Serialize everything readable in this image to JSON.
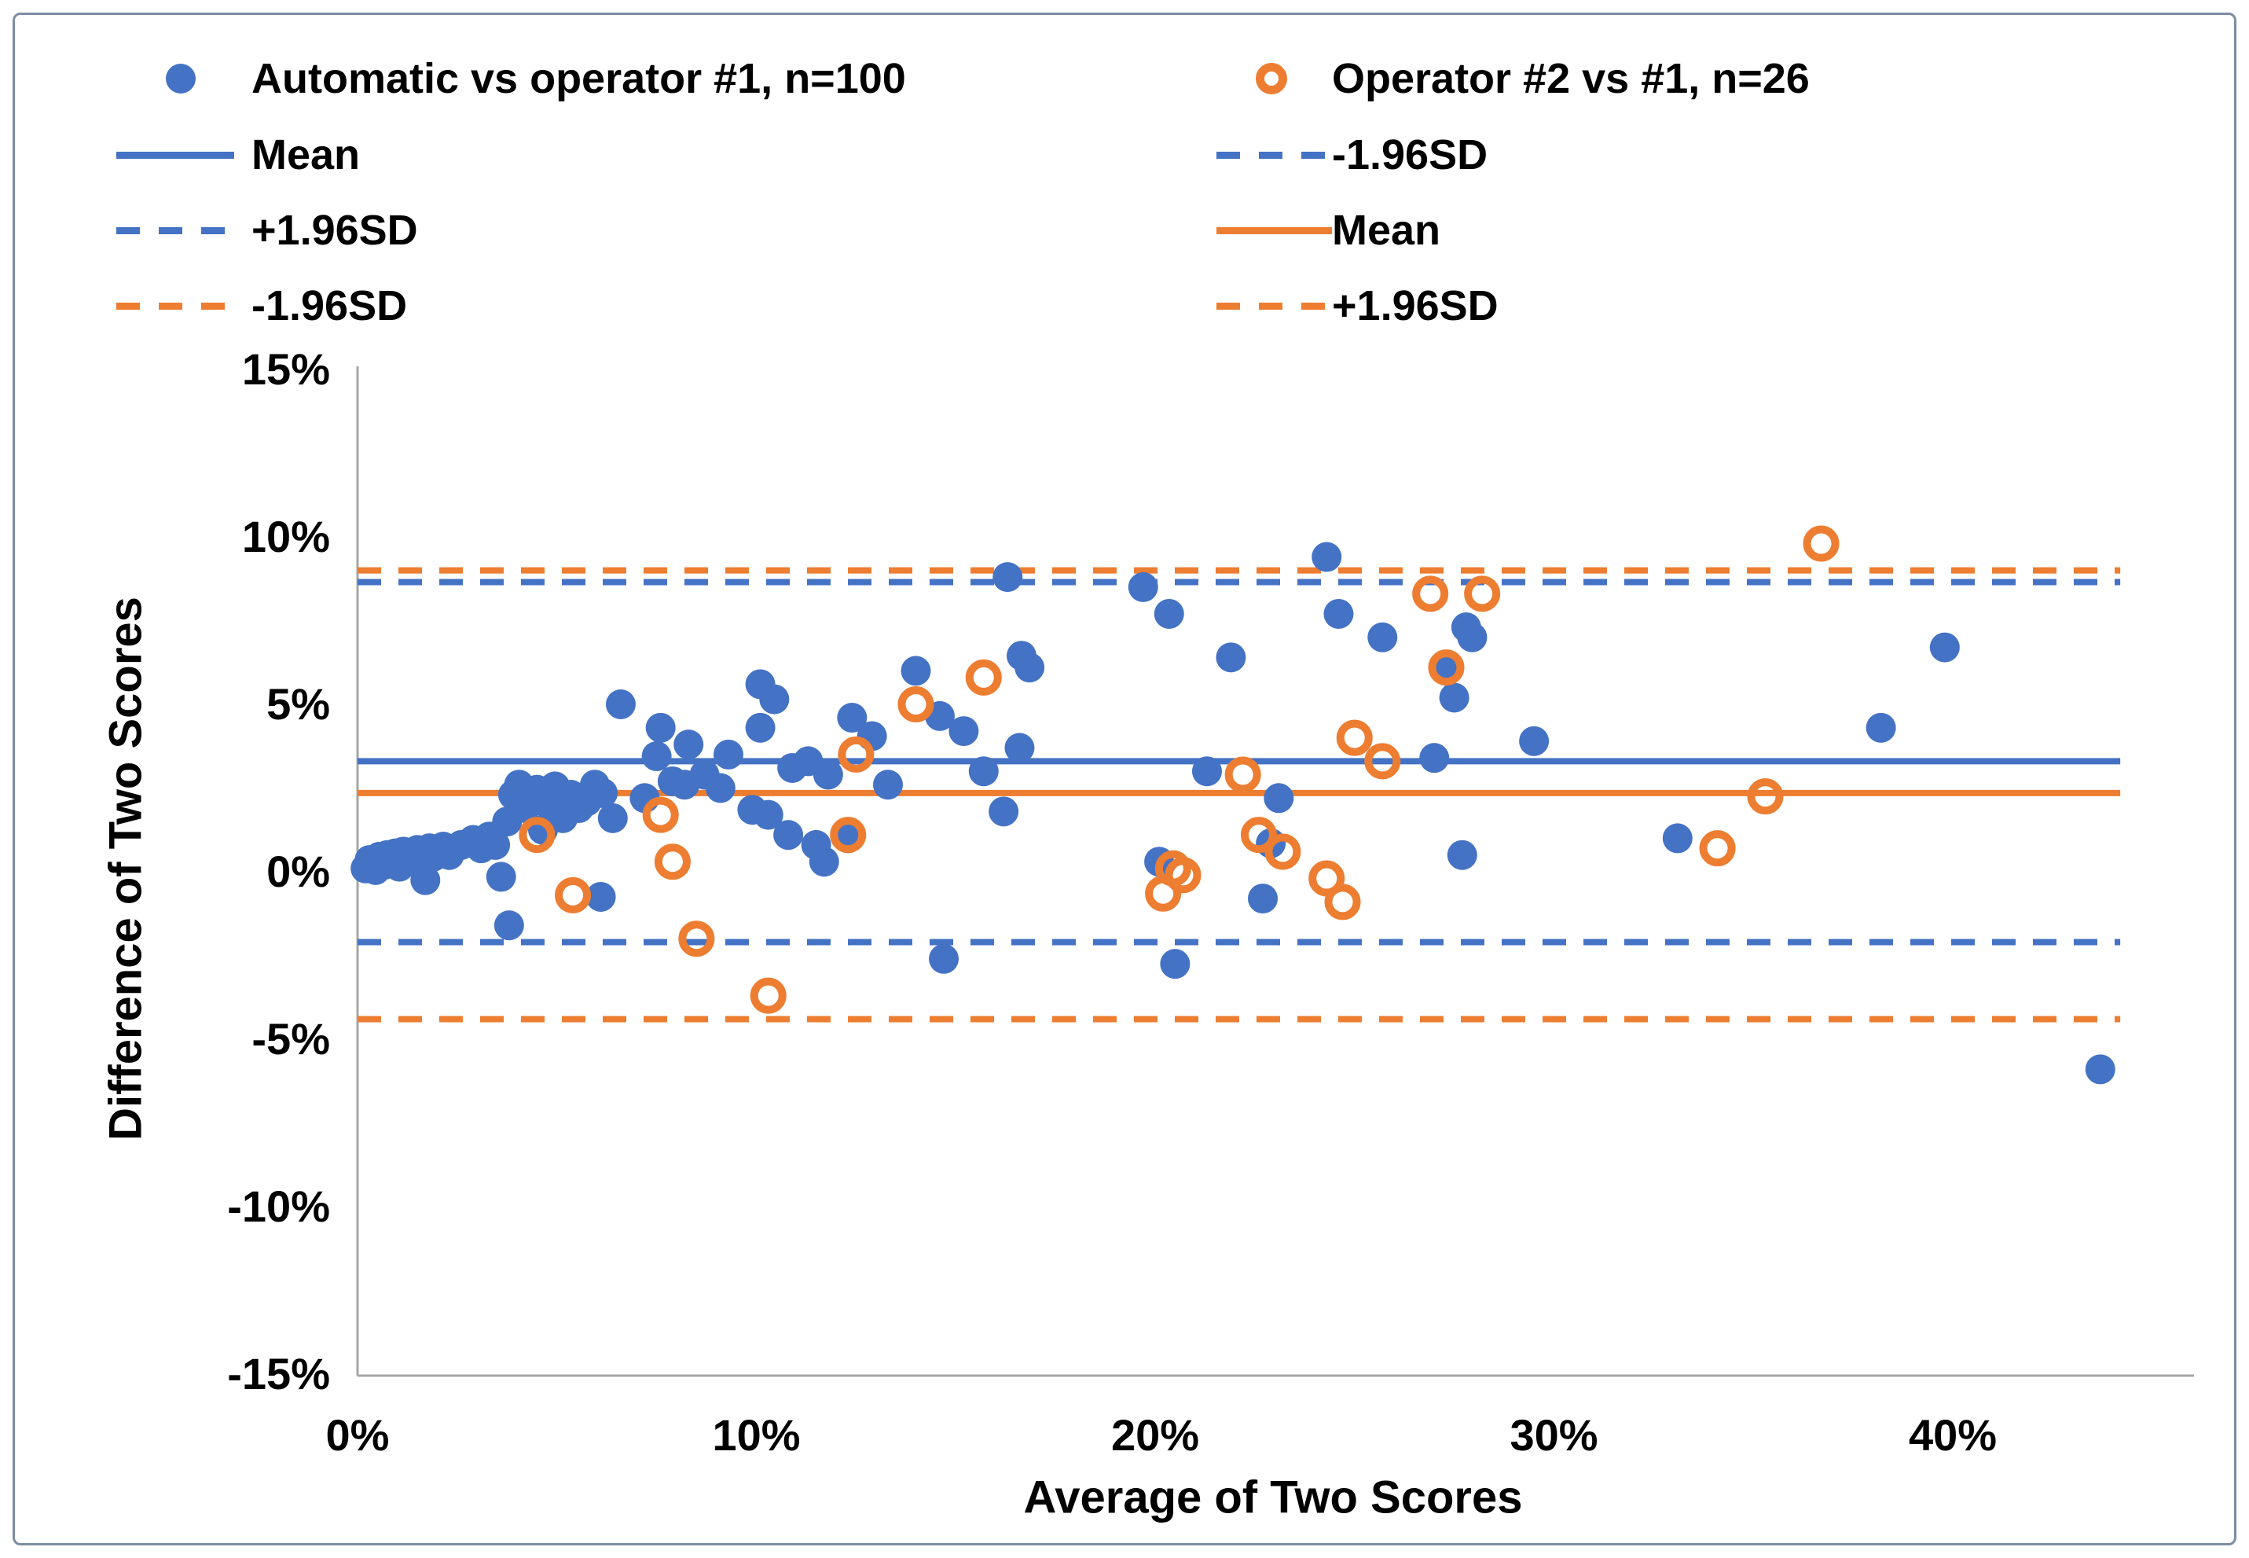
{
  "colors": {
    "series_blue": "#4472C4",
    "series_orange": "#ED7D31",
    "axis_line": "#A6A6A6",
    "text": "#000000",
    "frame_border": "#7d8ca3"
  },
  "legend": {
    "items": [
      {
        "label": "Automatic vs operator #1, n=100",
        "marker": "dot-blue"
      },
      {
        "label": "Mean",
        "marker": "line-solid-blue"
      },
      {
        "label": "+1.96SD",
        "marker": "line-dashed-blue"
      },
      {
        "label": "-1.96SD",
        "marker": "line-dashed-orange"
      },
      {
        "label": "Operator #2 vs #1, n=26",
        "marker": "ring-orange"
      },
      {
        "label": "-1.96SD",
        "marker": "line-dashed-blue"
      },
      {
        "label": "Mean",
        "marker": "line-solid-orange"
      },
      {
        "label": "+1.96SD",
        "marker": "line-dashed-orange"
      }
    ]
  },
  "chart_data": {
    "type": "scatter",
    "title": "",
    "xlabel": "Average of Two Scores",
    "ylabel": "Difference of Two Scores",
    "xlim": [
      0,
      46
    ],
    "ylim": [
      -15,
      15
    ],
    "x_tick_values": [
      0,
      10,
      20,
      30,
      40
    ],
    "x_tick_labels": [
      "0%",
      "10%",
      "20%",
      "30%",
      "40%"
    ],
    "y_tick_values": [
      15,
      10,
      5,
      0,
      -5,
      -10,
      -15
    ],
    "y_tick_labels": [
      "15%",
      "10%",
      "5%",
      "0%",
      "-5%",
      "-10%",
      "-15%"
    ],
    "grid": false,
    "legend_position": "top",
    "line_x_extent": [
      0,
      44.2
    ],
    "reference_lines": [
      {
        "name": "auto-mean",
        "label": "Mean",
        "series": "Automatic vs operator #1",
        "value": 3.3,
        "style": "solid",
        "color": "#4472C4"
      },
      {
        "name": "auto-upper",
        "label": "+1.96SD",
        "series": "Automatic vs operator #1",
        "value": 8.65,
        "style": "dashed",
        "color": "#4472C4"
      },
      {
        "name": "auto-lower",
        "label": "-1.96SD",
        "series": "Automatic vs operator #1",
        "value": -2.1,
        "style": "dashed",
        "color": "#4472C4"
      },
      {
        "name": "op2-mean",
        "label": "Mean",
        "series": "Operator #2 vs #1",
        "value": 2.35,
        "style": "solid",
        "color": "#ED7D31"
      },
      {
        "name": "op2-upper",
        "label": "+1.96SD",
        "series": "Operator #2 vs #1",
        "value": 9.0,
        "style": "dashed",
        "color": "#ED7D31"
      },
      {
        "name": "op2-lower",
        "label": "-1.96SD",
        "series": "Operator #2 vs #1",
        "value": -4.4,
        "style": "dashed",
        "color": "#ED7D31"
      }
    ],
    "series": [
      {
        "name": "Automatic vs operator #1, n=100",
        "marker": "filled-circle",
        "color": "#4472C4",
        "points": [
          [
            0.2,
            0.1
          ],
          [
            0.3,
            0.35
          ],
          [
            0.45,
            0.05
          ],
          [
            0.55,
            0.45
          ],
          [
            0.65,
            0.2
          ],
          [
            0.75,
            0.5
          ],
          [
            0.85,
            0.3
          ],
          [
            0.95,
            0.55
          ],
          [
            1.05,
            0.15
          ],
          [
            1.15,
            0.6
          ],
          [
            1.25,
            0.35
          ],
          [
            1.5,
            0.65
          ],
          [
            1.6,
            0.4
          ],
          [
            1.7,
            -0.25
          ],
          [
            1.8,
            0.7
          ],
          [
            1.9,
            0.45
          ],
          [
            2.15,
            0.75
          ],
          [
            2.3,
            0.5
          ],
          [
            2.6,
            0.8
          ],
          [
            2.9,
            0.95
          ],
          [
            3.1,
            0.7
          ],
          [
            3.3,
            1.05
          ],
          [
            3.45,
            0.8
          ],
          [
            3.6,
            -0.15
          ],
          [
            3.75,
            1.5
          ],
          [
            3.9,
            2.3
          ],
          [
            4.05,
            2.6
          ],
          [
            4.2,
            1.9
          ],
          [
            4.35,
            2.15
          ],
          [
            4.5,
            2.45
          ],
          [
            4.65,
            1.25
          ],
          [
            4.8,
            2.0
          ],
          [
            4.95,
            2.55
          ],
          [
            5.15,
            1.6
          ],
          [
            5.35,
            2.3
          ],
          [
            5.55,
            1.9
          ],
          [
            5.75,
            2.1
          ],
          [
            5.95,
            2.6
          ],
          [
            6.15,
            2.35
          ],
          [
            6.4,
            1.6
          ],
          [
            3.8,
            -1.6
          ],
          [
            6.1,
            -0.75
          ],
          [
            6.6,
            5.0
          ],
          [
            7.2,
            2.2
          ],
          [
            7.5,
            3.45
          ],
          [
            7.6,
            4.3
          ],
          [
            7.9,
            2.7
          ],
          [
            8.2,
            2.6
          ],
          [
            8.3,
            3.8
          ],
          [
            8.7,
            2.9
          ],
          [
            9.1,
            2.5
          ],
          [
            9.3,
            3.5
          ],
          [
            9.9,
            1.85
          ],
          [
            10.1,
            5.6
          ],
          [
            10.1,
            4.3
          ],
          [
            10.3,
            1.7
          ],
          [
            10.45,
            5.15
          ],
          [
            10.8,
            1.1
          ],
          [
            10.9,
            3.1
          ],
          [
            11.3,
            3.3
          ],
          [
            11.5,
            0.8
          ],
          [
            11.7,
            0.3
          ],
          [
            11.8,
            2.9
          ],
          [
            12.3,
            1.0
          ],
          [
            12.4,
            4.6
          ],
          [
            12.9,
            4.05
          ],
          [
            13.3,
            2.6
          ],
          [
            14.0,
            6.0
          ],
          [
            14.6,
            4.65
          ],
          [
            15.2,
            4.2
          ],
          [
            15.7,
            3.0
          ],
          [
            16.2,
            1.8
          ],
          [
            16.3,
            8.8
          ],
          [
            16.6,
            3.7
          ],
          [
            16.65,
            6.45
          ],
          [
            16.85,
            6.1
          ],
          [
            14.7,
            -2.6
          ],
          [
            19.7,
            8.5
          ],
          [
            20.1,
            0.3
          ],
          [
            20.35,
            7.7
          ],
          [
            20.5,
            -2.75
          ],
          [
            21.3,
            3.0
          ],
          [
            21.9,
            6.4
          ],
          [
            22.7,
            -0.8
          ],
          [
            22.9,
            0.85
          ],
          [
            23.1,
            2.2
          ],
          [
            24.3,
            9.4
          ],
          [
            24.6,
            7.7
          ],
          [
            25.7,
            7.0
          ],
          [
            27.0,
            3.4
          ],
          [
            27.3,
            6.0
          ],
          [
            27.5,
            5.2
          ],
          [
            27.7,
            0.5
          ],
          [
            27.8,
            7.3
          ],
          [
            27.95,
            7.0
          ],
          [
            29.5,
            3.9
          ],
          [
            33.1,
            1.0
          ],
          [
            38.2,
            4.3
          ],
          [
            39.8,
            6.7
          ],
          [
            43.7,
            -5.9
          ]
        ]
      },
      {
        "name": "Operator #2 vs #1, n=26",
        "marker": "open-circle",
        "color": "#ED7D31",
        "points": [
          [
            4.5,
            1.1
          ],
          [
            5.4,
            -0.7
          ],
          [
            7.6,
            1.7
          ],
          [
            7.9,
            0.3
          ],
          [
            8.5,
            -2.0
          ],
          [
            10.3,
            -3.7
          ],
          [
            12.3,
            1.1
          ],
          [
            12.5,
            3.5
          ],
          [
            14.0,
            5.0
          ],
          [
            15.7,
            5.8
          ],
          [
            20.2,
            -0.65
          ],
          [
            20.45,
            0.1
          ],
          [
            20.7,
            -0.1
          ],
          [
            22.2,
            2.9
          ],
          [
            22.6,
            1.1
          ],
          [
            23.2,
            0.6
          ],
          [
            24.3,
            -0.2
          ],
          [
            24.7,
            -0.9
          ],
          [
            25.0,
            4.0
          ],
          [
            25.7,
            3.3
          ],
          [
            26.9,
            8.3
          ],
          [
            27.3,
            6.1
          ],
          [
            28.2,
            8.3
          ],
          [
            34.1,
            0.7
          ],
          [
            35.3,
            2.25
          ],
          [
            36.7,
            9.8
          ]
        ]
      }
    ]
  }
}
